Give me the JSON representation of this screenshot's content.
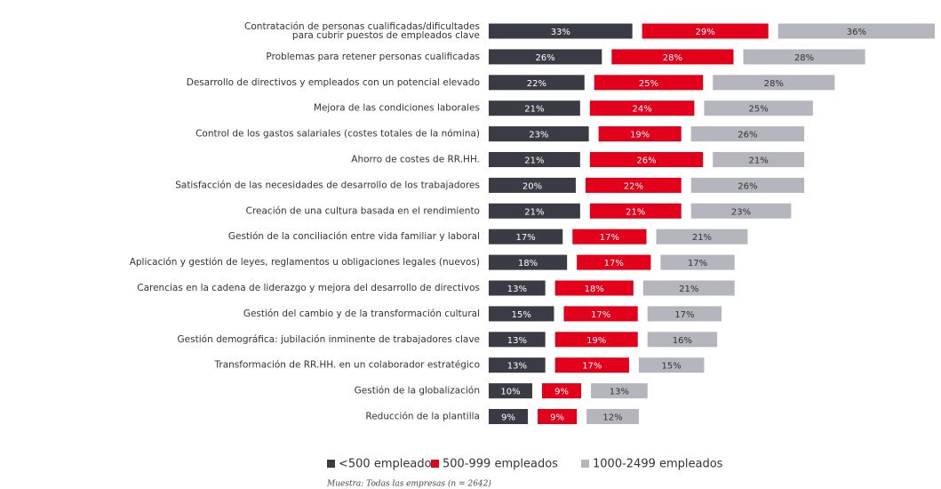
{
  "chart_data": {
    "type": "bar",
    "categories": [
      "Contratación de personas cualificadas/dificultades para cubrir puestos de empleados clave",
      "Problemas para retener personas cualificadas",
      "Desarrollo de directivos y empleados con un potencial elevado",
      "Mejora de las condiciones laborales",
      "Control de los gastos salariales (costes totales de la nómina)",
      "Ahorro de costes de RR.HH.",
      "Satisfacción de las necesidades de desarrollo de los trabajadores",
      "Creación de una cultura basada en el rendimiento",
      "Gestión de la conciliación entre vida familiar y laboral",
      "Aplicación y gestión de leyes, reglamentos u obligaciones legales (nuevos)",
      "Carencias en la cadena de liderazgo y mejora del desarrollo de directivos",
      "Gestión del cambio y de la transformación cultural",
      "Gestión demográfica: jubilación inminente de trabajadores clave",
      "Transformación de RR.HH. en un colaborador estratégico",
      "Gestión de la globalización",
      "Reducción de la plantilla"
    ],
    "series": [
      {
        "name": "<500 empleados",
        "color": "#3b3b46",
        "values": [
          33,
          26,
          22,
          21,
          23,
          21,
          20,
          21,
          17,
          18,
          13,
          15,
          13,
          13,
          10,
          9
        ],
        "value_labels": [
          "33%",
          "26%",
          "22%",
          "21%",
          "23%",
          "21%",
          "20%",
          "21%",
          "17%",
          "18%",
          "13%",
          "15%",
          "13%",
          "13%",
          "10%",
          "9%"
        ]
      },
      {
        "name": "500-999 empleados",
        "color": "#e2001a",
        "values": [
          29,
          28,
          25,
          24,
          19,
          26,
          22,
          21,
          17,
          17,
          18,
          17,
          19,
          17,
          9,
          9
        ],
        "value_labels": [
          "29%",
          "28%",
          "25%",
          "24%",
          "19%",
          "26%",
          "22%",
          "21%",
          "17%",
          "17%",
          "18%",
          "17%",
          "19%",
          "17%",
          "9%",
          "9%"
        ]
      },
      {
        "name": "1000-2499 empleados",
        "color": "#b5b5bd",
        "values": [
          36,
          28,
          28,
          25,
          26,
          21,
          26,
          23,
          21,
          17,
          21,
          17,
          16,
          15,
          13,
          12
        ],
        "value_labels": [
          "36%",
          "28%",
          "28%",
          "25%",
          "26%",
          "21%",
          "26%",
          "23%",
          "21%",
          "17%",
          "21%",
          "17%",
          "16%",
          "15%",
          "13%",
          "12%"
        ]
      }
    ],
    "note": "Muestra: Todas las empresas (n = 2642)"
  }
}
